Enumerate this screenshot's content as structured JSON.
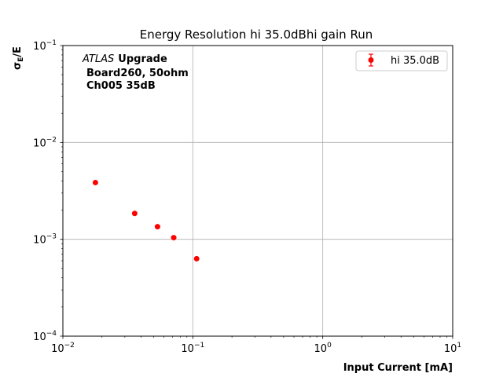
{
  "chart_data": {
    "type": "scatter",
    "title": "Energy Resolution hi 35.0dBhi gain Run",
    "xlabel": "Input Current [mA]",
    "ylabel_main": "σ",
    "ylabel_sub": "E",
    "ylabel_tail": "/E",
    "xscale": "log",
    "yscale": "log",
    "xlim": [
      0.01,
      10
    ],
    "ylim": [
      0.0001,
      0.1
    ],
    "grid": true,
    "legend_position": "top-right",
    "x_ticks": [
      {
        "value": 0.01,
        "base": "10",
        "exp": "−2"
      },
      {
        "value": 0.1,
        "base": "10",
        "exp": "−1"
      },
      {
        "value": 1,
        "base": "10",
        "exp": "0"
      },
      {
        "value": 10,
        "base": "10",
        "exp": "1"
      }
    ],
    "y_ticks": [
      {
        "value": 0.0001,
        "base": "10",
        "exp": "−4"
      },
      {
        "value": 0.001,
        "base": "10",
        "exp": "−3"
      },
      {
        "value": 0.01,
        "base": "10",
        "exp": "−2"
      },
      {
        "value": 0.1,
        "base": "10",
        "exp": "−1"
      }
    ],
    "annotation": {
      "italic": "ATLAS",
      "bold": "Upgrade",
      "line2": "Board260, 50ohm",
      "line3": "Ch005 35dB"
    },
    "series": [
      {
        "name": "hi 35.0dB",
        "color": "#ff0000",
        "x": [
          0.0178,
          0.0357,
          0.0535,
          0.0713,
          0.107
        ],
        "y": [
          0.00385,
          0.00185,
          0.00135,
          0.00104,
          0.00063
        ]
      }
    ]
  }
}
